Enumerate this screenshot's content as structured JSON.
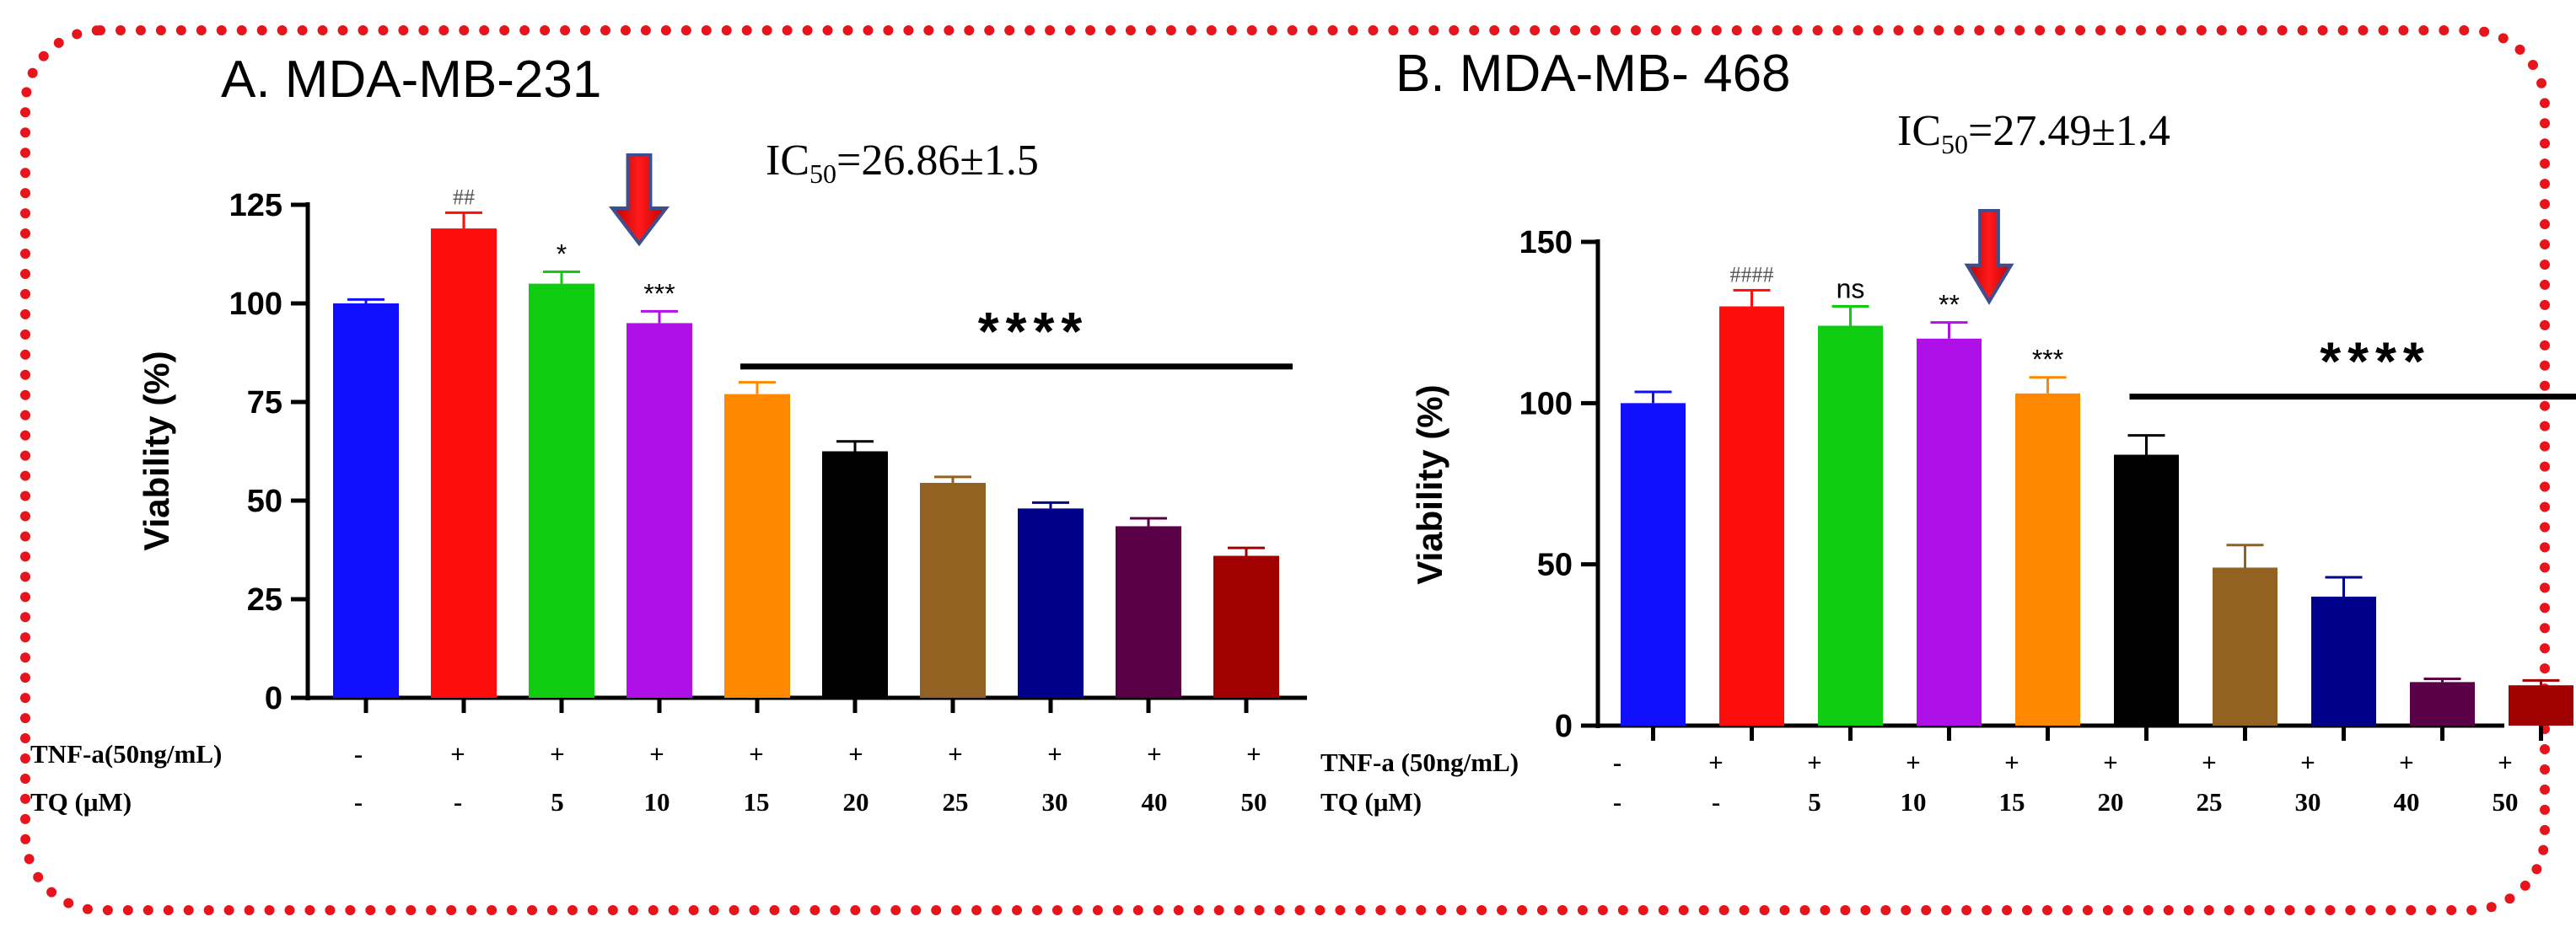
{
  "chart_data": [
    {
      "type": "bar",
      "title": "A.   MDA-MB-231",
      "ic50": {
        "prefix": "IC",
        "sub": "50",
        "value": "=26.86±1.5"
      },
      "ylabel": "Viability (%)",
      "ylim": [
        0,
        125
      ],
      "yticks": [
        "0",
        "25",
        "50",
        "75",
        "100",
        "125"
      ],
      "colors": [
        "#1010ff",
        "#ff0d0d",
        "#10cc10",
        "#b010e8",
        "#ff8800",
        "#000000",
        "#936122",
        "#00008b",
        "#5a0047",
        "#a00000"
      ],
      "values": [
        100,
        119,
        105,
        95,
        77,
        62.5,
        54.5,
        48,
        43.5,
        36
      ],
      "errors": [
        1,
        4,
        3,
        3,
        3,
        2.5,
        1.5,
        1.5,
        2,
        2
      ],
      "significance": [
        "",
        "##",
        "*",
        "***",
        "",
        "",
        "",
        "",
        "",
        ""
      ],
      "group_significance": {
        "label": "****",
        "from_bar": 4,
        "to_bar": 9,
        "level": 84
      },
      "arrow_bar": 3,
      "conditions": [
        {
          "label": "TNF-a(50ng/mL)",
          "values": [
            "-",
            "+",
            "+",
            "+",
            "+",
            "+",
            "+",
            "+",
            "+",
            "+"
          ]
        },
        {
          "label": "TQ (μM)",
          "values": [
            "-",
            "-",
            "5",
            "10",
            "15",
            "20",
            "25",
            "30",
            "40",
            "50"
          ]
        }
      ]
    },
    {
      "type": "bar",
      "title": "B.   MDA-MB- 468",
      "ic50": {
        "prefix": "IC",
        "sub": "50",
        "value": "=27.49±1.4"
      },
      "ylabel": "Viability (%)",
      "ylim": [
        0,
        150
      ],
      "yticks": [
        "0",
        "50",
        "100",
        "150"
      ],
      "colors": [
        "#1010ff",
        "#ff0d0d",
        "#10cc10",
        "#b010e8",
        "#ff8800",
        "#000000",
        "#936122",
        "#00008b",
        "#5a0047",
        "#a00000"
      ],
      "values": [
        100,
        130,
        124,
        120,
        103,
        84,
        49,
        40,
        13.5,
        12.5
      ],
      "errors": [
        3.5,
        5,
        6,
        5,
        5,
        6,
        7,
        6,
        1,
        1.5
      ],
      "significance": [
        "",
        "####",
        "ns",
        "**",
        "***",
        "",
        "",
        "",
        "",
        ""
      ],
      "group_significance": {
        "label": "****",
        "from_bar": 5,
        "to_bar": 9,
        "level": 102
      },
      "arrow_bar": 4,
      "conditions": [
        {
          "label": "TNF-a (50ng/mL)",
          "values": [
            "-",
            "+",
            "+",
            "+",
            "+",
            "+",
            "+",
            "+",
            "+",
            "+"
          ]
        },
        {
          "label": "TQ (μM)",
          "values": [
            "-",
            "-",
            "5",
            "10",
            "15",
            "20",
            "25",
            "30",
            "40",
            "50"
          ]
        }
      ]
    }
  ]
}
